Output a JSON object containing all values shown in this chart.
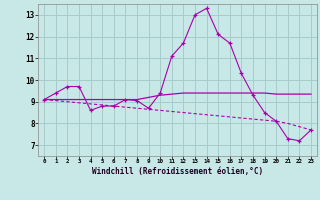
{
  "xlabel": "Windchill (Refroidissement éolien,°C)",
  "background_color": "#c8e8e8",
  "grid_color": "#a8cccc",
  "line_color": "#aa00aa",
  "xlim": [
    -0.5,
    23.5
  ],
  "ylim": [
    6.5,
    13.5
  ],
  "xticks": [
    0,
    1,
    2,
    3,
    4,
    5,
    6,
    7,
    8,
    9,
    10,
    11,
    12,
    13,
    14,
    15,
    16,
    17,
    18,
    19,
    20,
    21,
    22,
    23
  ],
  "yticks": [
    7,
    8,
    9,
    10,
    11,
    12,
    13
  ],
  "hours": [
    0,
    1,
    2,
    3,
    4,
    5,
    6,
    7,
    8,
    9,
    10,
    11,
    12,
    13,
    14,
    15,
    16,
    17,
    18,
    19,
    20,
    21,
    22,
    23
  ],
  "line1": [
    9.1,
    9.4,
    9.7,
    9.7,
    8.6,
    8.8,
    8.8,
    9.1,
    9.05,
    8.7,
    9.4,
    11.1,
    11.7,
    13.0,
    13.3,
    12.1,
    11.7,
    10.3,
    9.3,
    8.5,
    8.1,
    7.3,
    7.2,
    7.7
  ],
  "line2": [
    9.1,
    9.1,
    9.1,
    9.1,
    9.1,
    9.1,
    9.1,
    9.1,
    9.1,
    9.2,
    9.3,
    9.35,
    9.4,
    9.4,
    9.4,
    9.4,
    9.4,
    9.4,
    9.4,
    9.4,
    9.35,
    9.35,
    9.35,
    9.35
  ],
  "line3": [
    9.1,
    9.05,
    9.0,
    8.95,
    8.9,
    8.85,
    8.8,
    8.75,
    8.7,
    8.65,
    8.6,
    8.55,
    8.5,
    8.45,
    8.4,
    8.35,
    8.3,
    8.25,
    8.2,
    8.15,
    8.1,
    8.0,
    7.85,
    7.7
  ]
}
